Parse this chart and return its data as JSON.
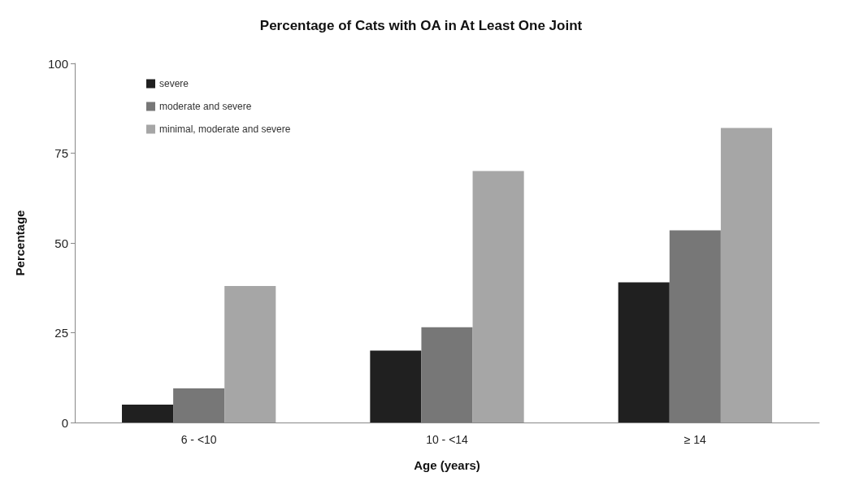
{
  "chart_data": {
    "type": "bar",
    "title": "Percentage of Cats with OA in At Least One Joint",
    "xlabel": "Age (years)",
    "ylabel": "Percentage",
    "categories": [
      "6 - <10",
      "10 - <14",
      "≥ 14"
    ],
    "series": [
      {
        "name": "severe",
        "color": "#202020",
        "values": [
          5,
          20,
          39
        ]
      },
      {
        "name": "moderate and severe",
        "color": "#777777",
        "values": [
          9.5,
          26.5,
          53.5
        ]
      },
      {
        "name": "minimal, moderate and severe",
        "color": "#a6a6a6",
        "values": [
          38,
          70,
          82
        ]
      }
    ],
    "ylim": [
      0,
      100
    ],
    "yticks": [
      0,
      25,
      50,
      75,
      100
    ],
    "grid": false,
    "legend": "top left"
  }
}
